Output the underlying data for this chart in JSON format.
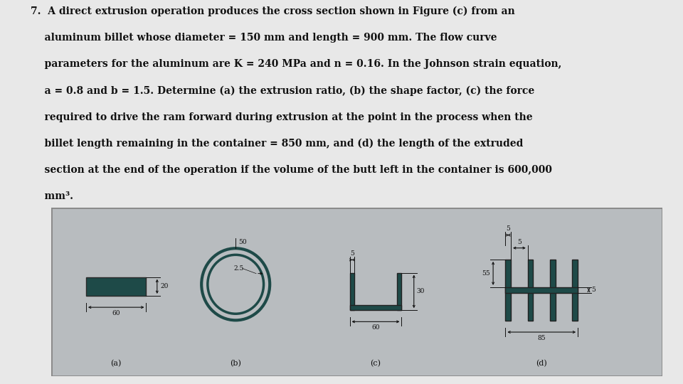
{
  "page_bg": "#e8e8e8",
  "fig_bg": "#b8bcbf",
  "shape_color": "#1e4a48",
  "dim_color": "#111111",
  "title_lines": [
    "7.  A direct extrusion operation produces the cross section shown in Figure (c) from an",
    "    aluminum billet whose diameter = 150 mm and length = 900 mm. The flow curve",
    "    parameters for the aluminum are K = 240 MPa and n = 0.16. In the Johnson strain equation,",
    "    a = 0.8 and b = 1.5. Determine (a) the extrusion ratio, (b) the shape factor, (c) the force",
    "    required to drive the ram forward during extrusion at the point in the process when the",
    "    billet length remaining in the container = 850 mm, and (d) the length of the extruded",
    "    section at the end of the operation if the volume of the butt left in the container is 600,000",
    "    mm³."
  ]
}
